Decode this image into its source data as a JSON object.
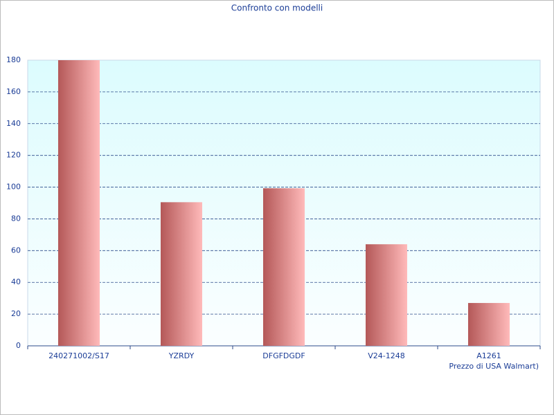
{
  "chart_data": {
    "type": "bar",
    "title": "Confronto con modelli",
    "x_label": "Prezzo di USA Walmart)",
    "categories": [
      "240271002/S17",
      "YZRDY",
      "DFGFDGDF",
      "V24-1248",
      "A1261"
    ],
    "values": [
      180,
      90.5,
      99.3,
      64,
      27
    ],
    "color": "#b85c5c",
    "ylim": [
      0,
      180
    ],
    "yticks": [
      0,
      20,
      40,
      60,
      80,
      100,
      120,
      140,
      160,
      180
    ],
    "grid": true
  }
}
